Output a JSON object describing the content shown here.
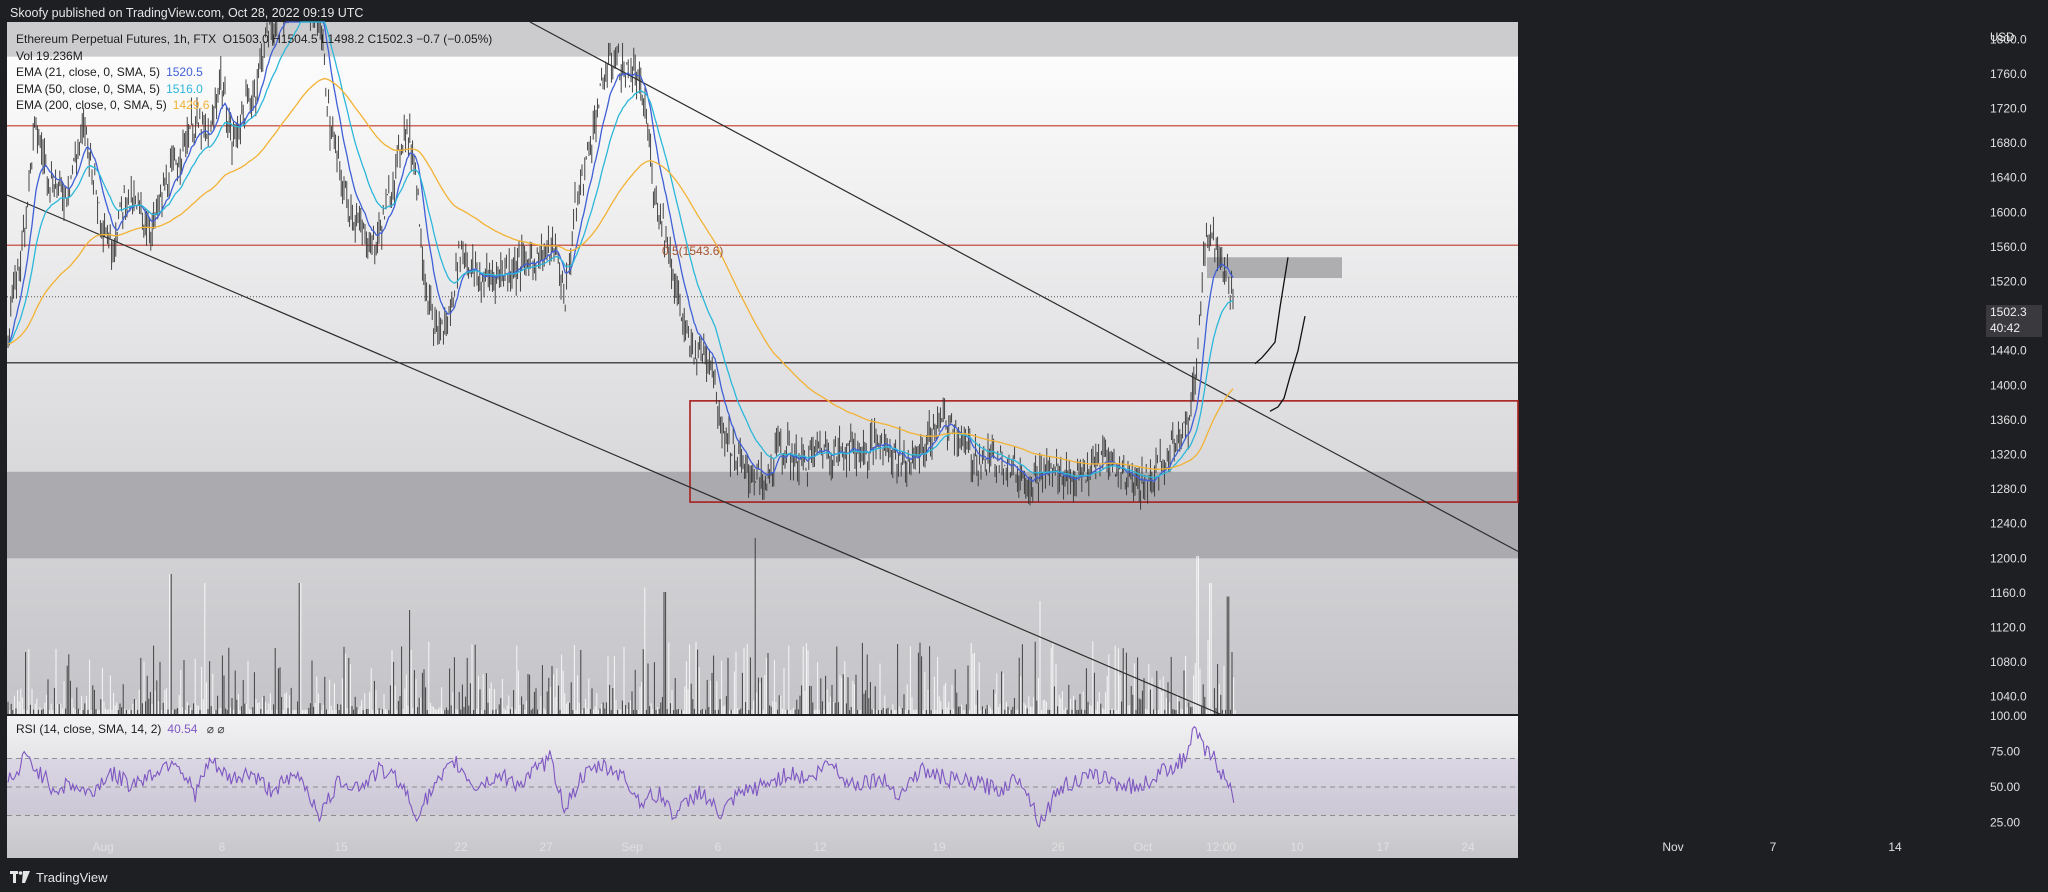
{
  "header": {
    "published": "Skoofy published on TradingView.com, Oct 28, 2022 09:19 UTC"
  },
  "footer": {
    "brand": "TradingView"
  },
  "legend": {
    "symbol": "Ethereum Perpetual Futures, 1h, FTX",
    "ohlc": "O1503.0  H1504.5  L1498.2  C1502.3  −0.7 (−0.05%)",
    "vol": "Vol  19.236M",
    "ema21": {
      "label": "EMA (21, close, 0, SMA, 5)",
      "value": "1520.5",
      "color": "#3f5fd6"
    },
    "ema50": {
      "label": "EMA (50, close, 0, SMA, 5)",
      "value": "1516.0",
      "color": "#2bb7da"
    },
    "ema200": {
      "label": "EMA (200, close, 0, SMA, 5)",
      "value": "1429.6",
      "color": "#f2b233"
    }
  },
  "rsi_legend": {
    "label": "RSI (14, close, SMA, 14, 2)",
    "value": "40.54",
    "icons": "⌀  ⌀"
  },
  "last_price": {
    "value": "1502.3",
    "countdown": "40:42"
  },
  "fib_label": "0.5(1543.6)",
  "chart_data": {
    "type": "candlestick",
    "title": "Ethereum Perpetual Futures, 1h, FTX",
    "ylabel": "USD",
    "ylim": [
      1020,
      1820
    ],
    "price_ticks": [
      1800,
      1760,
      1720,
      1680,
      1640,
      1600,
      1560,
      1520,
      1480,
      1440,
      1400,
      1360,
      1320,
      1280,
      1240,
      1200,
      1160,
      1120,
      1080,
      1040
    ],
    "price_tick_labels": [
      "1800.0",
      "1760.0",
      "1720.0",
      "1680.0",
      "1640.0",
      "1600.0",
      "1560.0",
      "1520.0",
      "1480.0",
      "1440.0",
      "1400.0",
      "1360.0",
      "1320.0",
      "1280.0",
      "1240.0",
      "1200.0",
      "1160.0",
      "1120.0",
      "1080.0",
      "1040.0"
    ],
    "x_ticks": [
      "Aug",
      "8",
      "15",
      "22",
      "27",
      "Sep",
      "6",
      "12",
      "19",
      "26",
      "Oct",
      "12:00",
      "10",
      "17",
      "24",
      "Nov",
      "7",
      "14"
    ],
    "price_series_approx": [
      [
        0,
        1370
      ],
      [
        10,
        1480
      ],
      [
        22,
        1560
      ],
      [
        35,
        1700
      ],
      [
        50,
        1640
      ],
      [
        65,
        1620
      ],
      [
        85,
        1700
      ],
      [
        100,
        1600
      ],
      [
        112,
        1560
      ],
      [
        125,
        1620
      ],
      [
        140,
        1600
      ],
      [
        152,
        1580
      ],
      [
        165,
        1630
      ],
      [
        178,
        1660
      ],
      [
        190,
        1700
      ],
      [
        200,
        1700
      ],
      [
        210,
        1680
      ],
      [
        220,
        1760
      ],
      [
        232,
        1680
      ],
      [
        245,
        1720
      ],
      [
        255,
        1740
      ],
      [
        265,
        1800
      ],
      [
        280,
        1830
      ],
      [
        300,
        1860
      ],
      [
        320,
        1820
      ],
      [
        330,
        1700
      ],
      [
        345,
        1620
      ],
      [
        360,
        1580
      ],
      [
        375,
        1560
      ],
      [
        390,
        1620
      ],
      [
        405,
        1700
      ],
      [
        415,
        1660
      ],
      [
        425,
        1520
      ],
      [
        435,
        1460
      ],
      [
        448,
        1470
      ],
      [
        460,
        1560
      ],
      [
        470,
        1540
      ],
      [
        480,
        1520
      ],
      [
        500,
        1530
      ],
      [
        520,
        1540
      ],
      [
        540,
        1550
      ],
      [
        555,
        1560
      ],
      [
        565,
        1500
      ],
      [
        575,
        1600
      ],
      [
        590,
        1680
      ],
      [
        605,
        1760
      ],
      [
        615,
        1780
      ],
      [
        625,
        1760
      ],
      [
        635,
        1760
      ],
      [
        645,
        1720
      ],
      [
        655,
        1620
      ],
      [
        665,
        1580
      ],
      [
        678,
        1500
      ],
      [
        690,
        1440
      ],
      [
        702,
        1440
      ],
      [
        712,
        1430
      ],
      [
        720,
        1360
      ],
      [
        730,
        1330
      ],
      [
        745,
        1300
      ],
      [
        755,
        1300
      ],
      [
        765,
        1280
      ],
      [
        778,
        1330
      ],
      [
        790,
        1320
      ],
      [
        805,
        1310
      ],
      [
        820,
        1330
      ],
      [
        835,
        1320
      ],
      [
        850,
        1330
      ],
      [
        865,
        1320
      ],
      [
        880,
        1340
      ],
      [
        895,
        1320
      ],
      [
        910,
        1310
      ],
      [
        925,
        1330
      ],
      [
        940,
        1360
      ],
      [
        955,
        1350
      ],
      [
        970,
        1320
      ],
      [
        985,
        1310
      ],
      [
        1000,
        1320
      ],
      [
        1015,
        1300
      ],
      [
        1030,
        1290
      ],
      [
        1045,
        1300
      ],
      [
        1060,
        1300
      ],
      [
        1075,
        1290
      ],
      [
        1090,
        1300
      ],
      [
        1105,
        1320
      ],
      [
        1120,
        1300
      ],
      [
        1135,
        1290
      ],
      [
        1150,
        1290
      ],
      [
        1165,
        1310
      ],
      [
        1180,
        1350
      ],
      [
        1190,
        1360
      ],
      [
        1198,
        1440
      ],
      [
        1204,
        1560
      ],
      [
        1210,
        1580
      ],
      [
        1218,
        1560
      ],
      [
        1225,
        1540
      ],
      [
        1232,
        1500
      ]
    ],
    "volume_spikes_approx": [
      [
        170,
        1.0
      ],
      [
        205,
        0.9
      ],
      [
        300,
        0.9
      ],
      [
        410,
        0.6
      ],
      [
        645,
        0.85
      ],
      [
        665,
        0.8
      ],
      [
        755,
        1.4
      ],
      [
        1040,
        0.7
      ],
      [
        1198,
        1.2
      ],
      [
        1210,
        0.9
      ],
      [
        1228,
        0.75
      ]
    ],
    "rsi_ticks": [
      100,
      75,
      50,
      25
    ],
    "rsi_tick_labels": [
      "100.00",
      "75.00",
      "50.00",
      "25.00"
    ],
    "rsi_bands": [
      70,
      50,
      30
    ],
    "rsi_series_approx": [
      [
        0,
        62
      ],
      [
        15,
        55
      ],
      [
        25,
        72
      ],
      [
        40,
        60
      ],
      [
        55,
        48
      ],
      [
        70,
        52
      ],
      [
        90,
        45
      ],
      [
        110,
        60
      ],
      [
        130,
        52
      ],
      [
        150,
        58
      ],
      [
        175,
        70
      ],
      [
        195,
        45
      ],
      [
        210,
        68
      ],
      [
        230,
        55
      ],
      [
        250,
        60
      ],
      [
        270,
        48
      ],
      [
        300,
        58
      ],
      [
        320,
        30
      ],
      [
        340,
        55
      ],
      [
        360,
        50
      ],
      [
        380,
        62
      ],
      [
        400,
        55
      ],
      [
        415,
        30
      ],
      [
        430,
        45
      ],
      [
        455,
        68
      ],
      [
        475,
        50
      ],
      [
        500,
        58
      ],
      [
        520,
        52
      ],
      [
        550,
        70
      ],
      [
        565,
        35
      ],
      [
        580,
        55
      ],
      [
        600,
        65
      ],
      [
        620,
        60
      ],
      [
        640,
        40
      ],
      [
        660,
        45
      ],
      [
        675,
        30
      ],
      [
        700,
        48
      ],
      [
        720,
        30
      ],
      [
        740,
        45
      ],
      [
        760,
        50
      ],
      [
        790,
        60
      ],
      [
        810,
        55
      ],
      [
        830,
        68
      ],
      [
        850,
        52
      ],
      [
        880,
        56
      ],
      [
        900,
        45
      ],
      [
        920,
        62
      ],
      [
        950,
        55
      ],
      [
        980,
        52
      ],
      [
        1000,
        48
      ],
      [
        1020,
        58
      ],
      [
        1040,
        25
      ],
      [
        1060,
        50
      ],
      [
        1080,
        55
      ],
      [
        1100,
        58
      ],
      [
        1120,
        52
      ],
      [
        1140,
        50
      ],
      [
        1160,
        60
      ],
      [
        1175,
        66
      ],
      [
        1185,
        70
      ],
      [
        1195,
        90
      ],
      [
        1205,
        75
      ],
      [
        1215,
        70
      ],
      [
        1225,
        55
      ],
      [
        1235,
        40
      ]
    ],
    "horizontal_levels": [
      {
        "price": 1700,
        "color": "#c0392b"
      },
      {
        "price": 1562,
        "color": "#c0392b"
      },
      {
        "price": 1426,
        "color": "#1a1a1a"
      },
      {
        "price": 1502.3,
        "color": "#555",
        "dotted": true
      }
    ],
    "zones": [
      {
        "from": 1820,
        "to": 1780,
        "color": "#c9c9cb"
      },
      {
        "from": 1300,
        "to": 1200,
        "color": "#a9a9ad"
      }
    ],
    "range_box": {
      "x0": 690,
      "x1": 1518,
      "top": 1382,
      "bottom": 1265,
      "color": "#a81e1e"
    },
    "resistance_box": {
      "x0": 1207,
      "x1": 1342,
      "top": 1548,
      "bottom": 1524
    },
    "trendlines": [
      {
        "x0": 530,
        "y0": 1820,
        "x1": 1518,
        "y1": 1208
      },
      {
        "x0": 7,
        "y0": 1620,
        "x1": 1220,
        "y1": 1020
      }
    ],
    "projection_paths": [
      [
        [
          1255,
          1425
        ],
        [
          1262,
          1432
        ],
        [
          1268,
          1440
        ],
        [
          1275,
          1450
        ],
        [
          1280,
          1490
        ],
        [
          1288,
          1548
        ]
      ],
      [
        [
          1270,
          1370
        ],
        [
          1278,
          1375
        ],
        [
          1284,
          1385
        ],
        [
          1290,
          1410
        ],
        [
          1298,
          1440
        ],
        [
          1305,
          1480
        ]
      ]
    ],
    "emas": {
      "ema21": "#3f5fd6",
      "ema50": "#2bb7da",
      "ema200": "#f2b233"
    }
  }
}
